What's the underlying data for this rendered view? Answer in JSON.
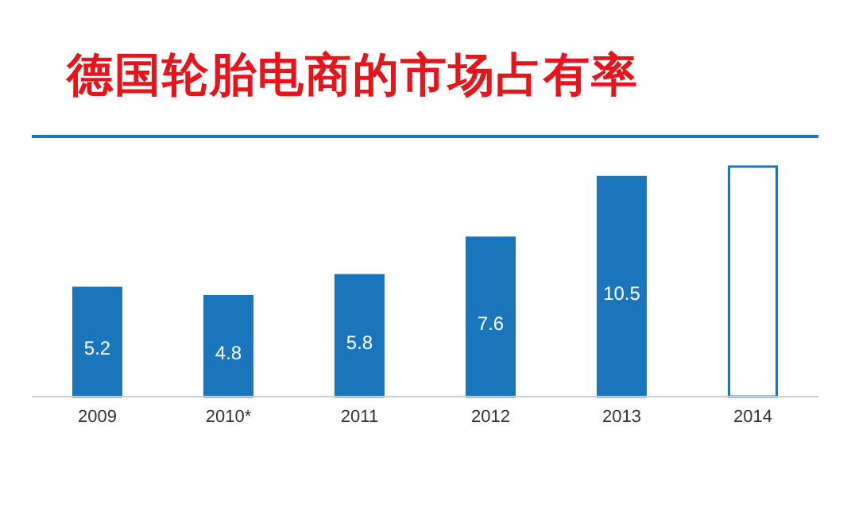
{
  "chart_data": {
    "type": "bar",
    "title": "德国轮胎电商的市场占有率",
    "categories": [
      "2009",
      "2010*",
      "2011",
      "2012",
      "2013",
      "2014"
    ],
    "values": [
      5.2,
      4.8,
      5.8,
      7.6,
      10.5,
      11.0
    ],
    "value_labels": [
      "5.2",
      "4.8",
      "5.8",
      "7.6",
      "10.5",
      null
    ],
    "color": "#1a75bb",
    "colors": [
      "#1a75bb",
      "#1a75bb",
      "#1a75bb",
      "#1a75bb",
      "#1a75bb",
      "#ffffff"
    ],
    "grid": false,
    "legend": false
  }
}
